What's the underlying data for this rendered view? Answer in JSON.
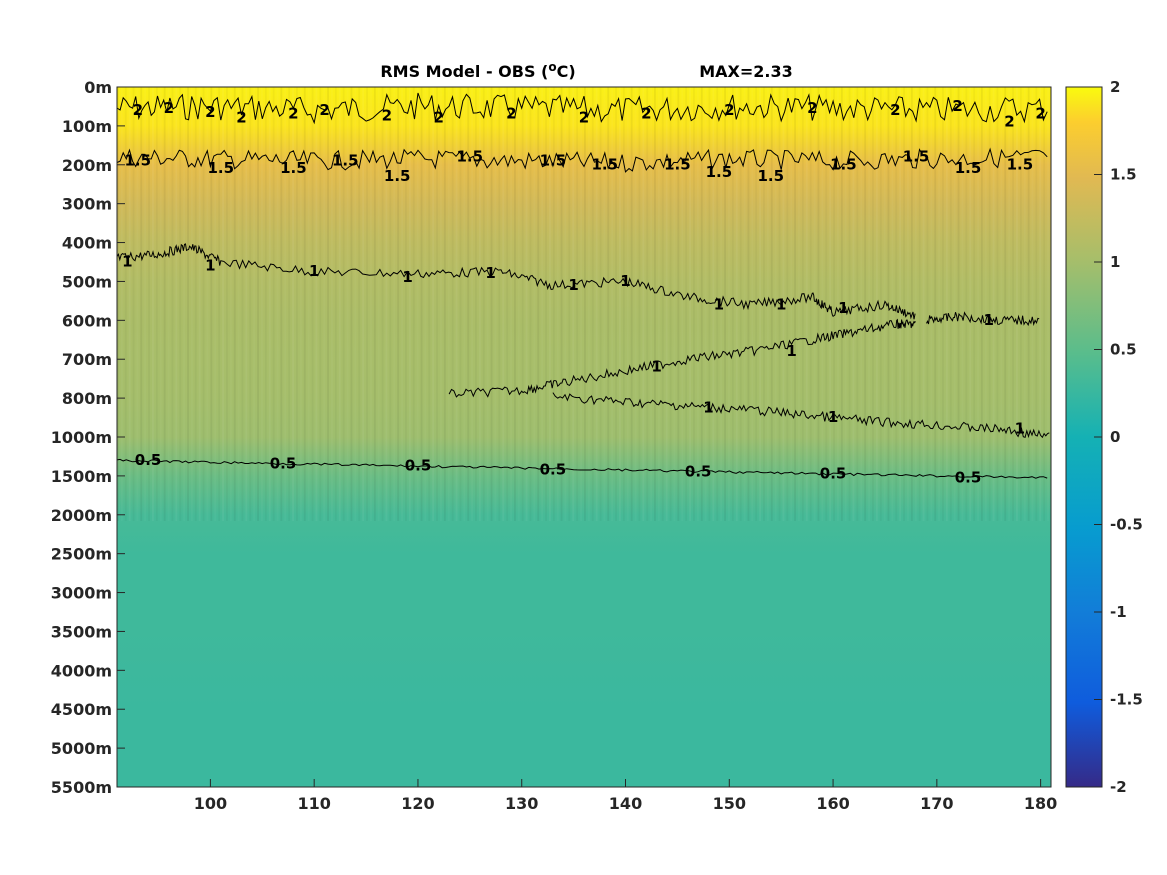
{
  "chart_data": {
    "type": "heatmap",
    "title": "RMS Model - OBS (°C)",
    "title_parts": {
      "prefix": "RMS Model - OBS (",
      "sup": "o",
      "suffix": "C)"
    },
    "max_label": "MAX=2.33",
    "colormap": "parula",
    "x": {
      "range": [
        91,
        181
      ],
      "ticks": [
        100,
        110,
        120,
        130,
        140,
        150,
        160,
        170,
        180
      ]
    },
    "y": {
      "direction": "down",
      "tick_labels": [
        "0m",
        "100m",
        "200m",
        "300m",
        "400m",
        "500m",
        "600m",
        "700m",
        "800m",
        "1000m",
        "1500m",
        "2000m",
        "2500m",
        "3000m",
        "3500m",
        "4000m",
        "4500m",
        "5000m",
        "5500m"
      ]
    },
    "colorbar": {
      "range": [
        -2,
        2
      ],
      "ticks": [
        "2",
        "1.5",
        "1",
        "0.5",
        "0",
        "-0.5",
        "-1",
        "-1.5",
        "-2"
      ]
    },
    "depth_profile": [
      {
        "row": 0,
        "value": 1.95
      },
      {
        "row": 1,
        "value": 1.9
      },
      {
        "row": 2,
        "value": 1.55
      },
      {
        "row": 3,
        "value": 1.35
      },
      {
        "row": 4,
        "value": 1.2
      },
      {
        "row": 5,
        "value": 1.1
      },
      {
        "row": 6,
        "value": 1.05
      },
      {
        "row": 7,
        "value": 1.02
      },
      {
        "row": 8,
        "value": 1.0
      },
      {
        "row": 9,
        "value": 0.95
      },
      {
        "row": 10,
        "value": 0.6
      },
      {
        "row": 11,
        "value": 0.35
      },
      {
        "row": 12,
        "value": 0.3
      },
      {
        "row": 13,
        "value": 0.3
      },
      {
        "row": 14,
        "value": 0.3
      },
      {
        "row": 15,
        "value": 0.28
      },
      {
        "row": 16,
        "value": 0.27
      },
      {
        "row": 17,
        "value": 0.27
      },
      {
        "row": 18,
        "value": 0.27
      }
    ],
    "contours": [
      {
        "level": "2",
        "points": [
          [
            91,
            0.55
          ],
          [
            100,
            0.5
          ],
          [
            110,
            0.6
          ],
          [
            120,
            0.5
          ],
          [
            130,
            0.55
          ],
          [
            140,
            0.6
          ],
          [
            150,
            0.5
          ],
          [
            160,
            0.55
          ],
          [
            170,
            0.6
          ],
          [
            181,
            0.55
          ]
        ],
        "labels": [
          [
            93,
            0.6
          ],
          [
            96,
            0.55
          ],
          [
            100,
            0.65
          ],
          [
            103,
            0.8
          ],
          [
            108,
            0.7
          ],
          [
            111,
            0.6
          ],
          [
            117,
            0.75
          ],
          [
            122,
            0.8
          ],
          [
            129,
            0.7
          ],
          [
            136,
            0.8
          ],
          [
            142,
            0.7
          ],
          [
            150,
            0.6
          ],
          [
            158,
            0.55
          ],
          [
            166,
            0.6
          ],
          [
            172,
            0.5
          ],
          [
            177,
            0.9
          ],
          [
            180,
            0.7
          ]
        ]
      },
      {
        "level": "1.5",
        "points": [
          [
            91,
            1.8
          ],
          [
            100,
            1.85
          ],
          [
            110,
            1.9
          ],
          [
            120,
            1.85
          ],
          [
            130,
            1.9
          ],
          [
            140,
            1.95
          ],
          [
            150,
            1.85
          ],
          [
            160,
            1.9
          ],
          [
            170,
            1.85
          ],
          [
            181,
            1.8
          ]
        ],
        "labels": [
          [
            93,
            1.9
          ],
          [
            101,
            2.1
          ],
          [
            108,
            2.1
          ],
          [
            113,
            1.9
          ],
          [
            118,
            2.3
          ],
          [
            125,
            1.8
          ],
          [
            133,
            1.9
          ],
          [
            138,
            2.0
          ],
          [
            145,
            2.0
          ],
          [
            149,
            2.2
          ],
          [
            154,
            2.3
          ],
          [
            161,
            2.0
          ],
          [
            168,
            1.8
          ],
          [
            173,
            2.1
          ],
          [
            178,
            2.0
          ]
        ]
      },
      {
        "level": "1",
        "points": [
          [
            91,
            4.4
          ],
          [
            95,
            4.3
          ],
          [
            98,
            4.1
          ],
          [
            101,
            4.5
          ],
          [
            110,
            4.75
          ],
          [
            120,
            4.8
          ],
          [
            128,
            4.75
          ],
          [
            133,
            5.1
          ],
          [
            140,
            5.0
          ],
          [
            146,
            5.4
          ],
          [
            152,
            5.6
          ],
          [
            158,
            5.4
          ],
          [
            160,
            5.8
          ],
          [
            165,
            5.6
          ],
          [
            168,
            5.9
          ]
        ],
        "labels": [
          [
            92,
            4.5
          ],
          [
            100,
            4.6
          ],
          [
            110,
            4.75
          ],
          [
            119,
            4.9
          ],
          [
            127,
            4.8
          ],
          [
            135,
            5.1
          ],
          [
            140,
            5.0
          ],
          [
            149,
            5.6
          ],
          [
            155,
            5.6
          ],
          [
            161,
            5.7
          ]
        ]
      },
      {
        "level": "1",
        "points": [
          [
            123,
            7.9
          ],
          [
            130,
            7.8
          ],
          [
            134,
            7.6
          ],
          [
            140,
            7.3
          ],
          [
            146,
            7.0
          ],
          [
            152,
            6.8
          ],
          [
            158,
            6.5
          ],
          [
            162,
            6.3
          ],
          [
            166,
            6.1
          ],
          [
            168,
            6.1
          ]
        ],
        "labels": [
          [
            143,
            7.2
          ],
          [
            156,
            6.8
          ]
        ]
      },
      {
        "level": "1",
        "points": [
          [
            133,
            7.95
          ],
          [
            140,
            8.1
          ],
          [
            146,
            8.2
          ],
          [
            152,
            8.3
          ],
          [
            158,
            8.45
          ],
          [
            164,
            8.6
          ],
          [
            170,
            8.7
          ],
          [
            176,
            8.8
          ],
          [
            181,
            9.0
          ]
        ],
        "labels": [
          [
            148,
            8.25
          ],
          [
            160,
            8.5
          ],
          [
            178,
            8.8
          ]
        ]
      },
      {
        "level": "1",
        "points": [
          [
            169,
            6.0
          ],
          [
            172,
            5.9
          ],
          [
            176,
            6.0
          ],
          [
            180,
            6.0
          ]
        ],
        "labels": [
          [
            175,
            6.0
          ]
        ]
      },
      {
        "level": "0.5",
        "points": [
          [
            91,
            9.6
          ],
          [
            100,
            9.65
          ],
          [
            110,
            9.7
          ],
          [
            120,
            9.75
          ],
          [
            130,
            9.8
          ],
          [
            140,
            9.85
          ],
          [
            150,
            9.9
          ],
          [
            160,
            9.95
          ],
          [
            170,
            10.0
          ],
          [
            181,
            10.05
          ]
        ],
        "labels": [
          [
            94,
            9.6
          ],
          [
            107,
            9.7
          ],
          [
            120,
            9.75
          ],
          [
            133,
            9.85
          ],
          [
            147,
            9.9
          ],
          [
            160,
            9.95
          ],
          [
            173,
            10.05
          ]
        ]
      }
    ]
  }
}
